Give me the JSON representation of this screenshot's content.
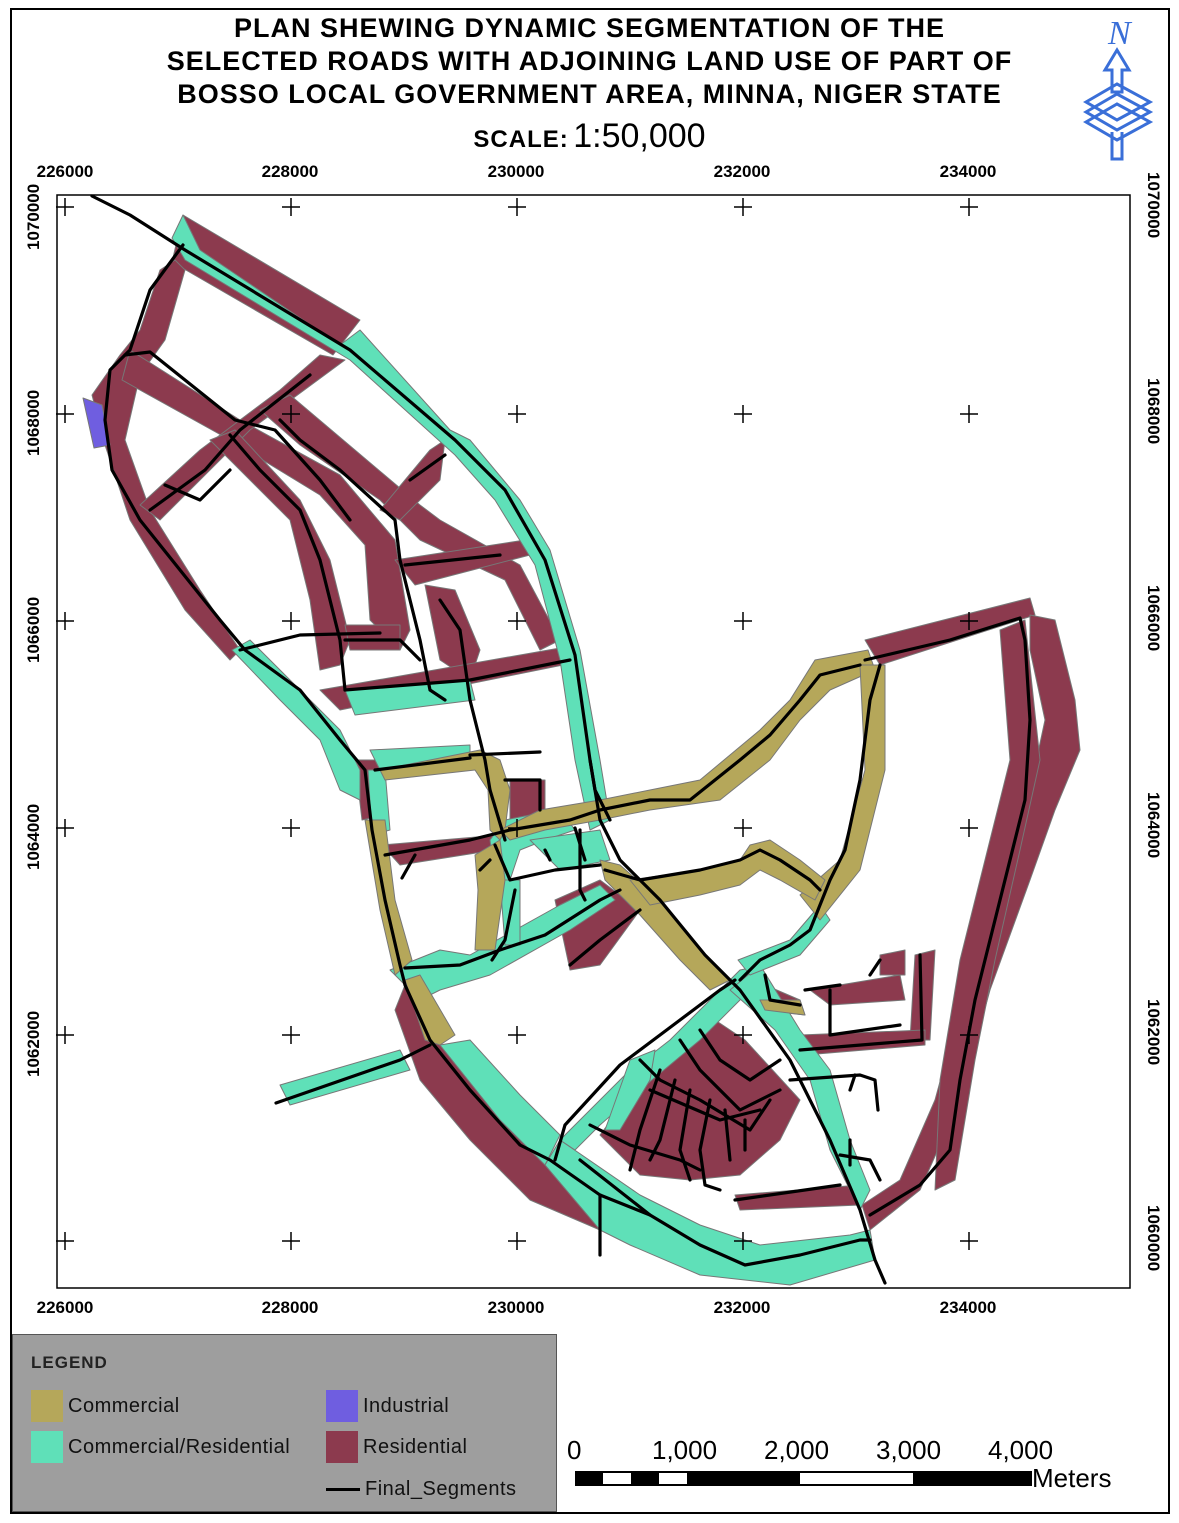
{
  "title": {
    "line1": "PLAN SHEWING DYNAMIC SEGMENTATION OF THE",
    "line2": "SELECTED ROADS WITH ADJOINING LAND USE OF PART OF",
    "line3": "BOSSO LOCAL GOVERNMENT AREA, MINNA, NIGER STATE"
  },
  "scale": {
    "label": "SCALE:",
    "value": "1:50,000"
  },
  "north_arrow": {
    "letter": "N",
    "icon": "north-arrow-icon"
  },
  "grid": {
    "eastings": [
      "226000",
      "228000",
      "230000",
      "232000",
      "234000"
    ],
    "northings": [
      "1070000",
      "1068000",
      "1066000",
      "1064000",
      "1062000",
      "1060000"
    ]
  },
  "legend": {
    "title": "LEGEND",
    "items": [
      {
        "label": "Commercial",
        "color": "#b5a75a"
      },
      {
        "label": "Industrial",
        "color": "#6f5ee0"
      },
      {
        "label": "Commercial/Residential",
        "color": "#5fe0b8"
      },
      {
        "label": "Residential",
        "color": "#8c3a4e"
      },
      {
        "label": "Final_Segments",
        "color": "#000000"
      }
    ]
  },
  "scale_bar": {
    "ticks": [
      "0",
      "1,000",
      "2,000",
      "3,000",
      "4,000"
    ],
    "units": "Meters"
  },
  "colors": {
    "commercial": "#b5a75a",
    "industrial": "#6f5ee0",
    "commercial_residential": "#5fe0b8",
    "residential": "#8c3a4e",
    "segments": "#000000"
  }
}
